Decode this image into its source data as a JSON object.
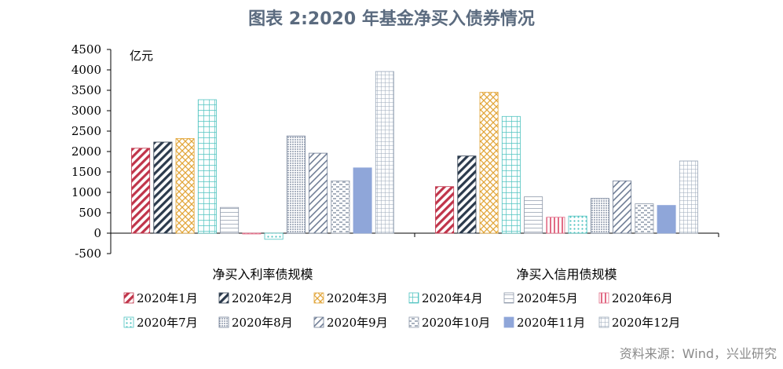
{
  "title": "图表 2:2020 年基金净买入债券情况",
  "source": "资料来源：Wind，兴业研究",
  "colors": {
    "jan": "#c0344a",
    "feb": "#2b3a4c",
    "mar": "#e2a63a",
    "apr": "#4fc3c0",
    "may": "#8c97a8",
    "jun": "#e26b85",
    "jul": "#4fc3c0",
    "aug": "#6f7d95",
    "sep": "#6f7d95",
    "oct": "#8c97a8",
    "nov": "#8fa6d9",
    "dec": "#9aa7b8"
  },
  "chart_data": {
    "type": "bar",
    "title": "图表 2:2020 年基金净买入债券情况",
    "ylabel": "亿元",
    "ylim": [
      -500,
      4500
    ],
    "yticks": [
      -500,
      0,
      500,
      1000,
      1500,
      2000,
      2500,
      3000,
      3500,
      4000,
      4500
    ],
    "grid": false,
    "legend_position": "bottom",
    "categories": [
      "净买入利率债规模",
      "净买入信用债规模"
    ],
    "series": [
      {
        "name": "2020年1月",
        "values": [
          2080,
          1140
        ],
        "pattern": "diag-thick",
        "color_key": "jan"
      },
      {
        "name": "2020年2月",
        "values": [
          2230,
          1890
        ],
        "pattern": "diag-thick",
        "color_key": "feb"
      },
      {
        "name": "2020年3月",
        "values": [
          2320,
          3450
        ],
        "pattern": "cross-diag",
        "color_key": "mar"
      },
      {
        "name": "2020年4月",
        "values": [
          3270,
          2860
        ],
        "pattern": "grid",
        "color_key": "apr"
      },
      {
        "name": "2020年5月",
        "values": [
          630,
          890
        ],
        "pattern": "horizontal",
        "color_key": "may"
      },
      {
        "name": "2020年6月",
        "values": [
          -20,
          390
        ],
        "pattern": "vertical",
        "color_key": "jun"
      },
      {
        "name": "2020年7月",
        "values": [
          -150,
          420
        ],
        "pattern": "dots",
        "color_key": "jul"
      },
      {
        "name": "2020年8月",
        "values": [
          2380,
          850
        ],
        "pattern": "dense-dots",
        "color_key": "aug"
      },
      {
        "name": "2020年9月",
        "values": [
          1960,
          1280
        ],
        "pattern": "diag-thin",
        "color_key": "sep"
      },
      {
        "name": "2020年10月",
        "values": [
          1280,
          720
        ],
        "pattern": "dashed",
        "color_key": "oct"
      },
      {
        "name": "2020年11月",
        "values": [
          1600,
          680
        ],
        "pattern": "solid",
        "color_key": "nov"
      },
      {
        "name": "2020年12月",
        "values": [
          3960,
          1770
        ],
        "pattern": "small-grid",
        "color_key": "dec"
      }
    ]
  }
}
